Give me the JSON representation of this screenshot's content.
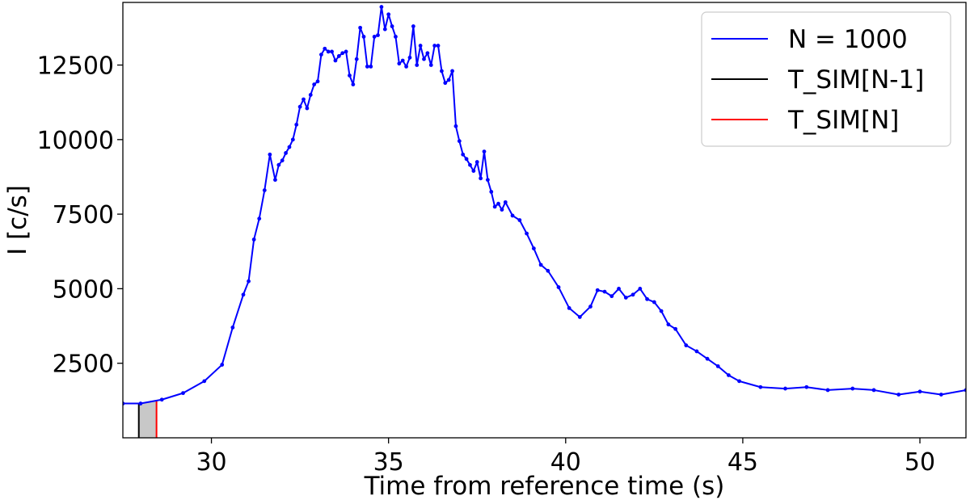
{
  "chart_data": {
    "type": "line",
    "xlabel": "Time from reference time (s)",
    "ylabel": "I [c/s]",
    "xlim": [
      27.5,
      51.3
    ],
    "ylim": [
      0,
      14600
    ],
    "x_ticks": [
      "30",
      "35",
      "40",
      "45",
      "50"
    ],
    "y_ticks": [
      "2500",
      "5000",
      "7500",
      "10000",
      "12500"
    ],
    "grid": false,
    "legend_position": "top-right",
    "legend": [
      {
        "label": "N = 1000",
        "color": "#0000ff"
      },
      {
        "label": "T_SIM[N-1]",
        "color": "#000000"
      },
      {
        "label": "T_SIM[N]",
        "color": "#ff0000"
      }
    ],
    "markers": [
      {
        "label": "T_SIM[N-1]",
        "x": 27.95,
        "color": "#000000"
      },
      {
        "label": "T_SIM[N]",
        "x": 28.45,
        "color": "#ff0000"
      }
    ],
    "shaded_interval": {
      "x0": 27.95,
      "x1": 28.45,
      "color": "#c8c8c8"
    },
    "series": [
      {
        "name": "N = 1000",
        "color": "#0000ff",
        "x": [
          27.5,
          28.0,
          28.6,
          29.2,
          29.8,
          30.3,
          30.6,
          30.9,
          31.05,
          31.2,
          31.35,
          31.5,
          31.65,
          31.8,
          31.9,
          32.0,
          32.1,
          32.2,
          32.3,
          32.4,
          32.5,
          32.6,
          32.7,
          32.8,
          32.9,
          33.0,
          33.1,
          33.2,
          33.3,
          33.4,
          33.5,
          33.6,
          33.7,
          33.8,
          33.9,
          34.0,
          34.1,
          34.2,
          34.3,
          34.4,
          34.5,
          34.6,
          34.7,
          34.8,
          34.9,
          35.0,
          35.1,
          35.2,
          35.3,
          35.4,
          35.5,
          35.6,
          35.7,
          35.8,
          35.9,
          36.0,
          36.1,
          36.2,
          36.3,
          36.4,
          36.5,
          36.6,
          36.7,
          36.8,
          36.9,
          37.0,
          37.1,
          37.2,
          37.3,
          37.4,
          37.5,
          37.6,
          37.7,
          37.8,
          37.9,
          38.0,
          38.1,
          38.2,
          38.3,
          38.5,
          38.7,
          38.9,
          39.1,
          39.3,
          39.5,
          39.8,
          40.1,
          40.4,
          40.7,
          40.9,
          41.1,
          41.3,
          41.5,
          41.7,
          41.9,
          42.1,
          42.3,
          42.5,
          42.7,
          42.9,
          43.1,
          43.4,
          43.7,
          44.0,
          44.3,
          44.6,
          44.9,
          45.5,
          46.2,
          46.8,
          47.4,
          48.1,
          48.7,
          49.4,
          50.0,
          50.6,
          51.3
        ],
        "y": [
          1150,
          1150,
          1280,
          1500,
          1900,
          2450,
          3700,
          4800,
          5250,
          6650,
          7350,
          8300,
          9500,
          8650,
          9150,
          9300,
          9550,
          9750,
          10000,
          10500,
          11100,
          11350,
          11050,
          11500,
          11850,
          11950,
          12850,
          13050,
          12950,
          12950,
          12650,
          12800,
          12900,
          12950,
          12150,
          11850,
          12700,
          13750,
          13450,
          12450,
          12450,
          13450,
          13500,
          14450,
          13700,
          14200,
          13800,
          13450,
          12550,
          12650,
          12450,
          12750,
          13800,
          12500,
          13150,
          12700,
          12900,
          12500,
          13150,
          13150,
          12300,
          11900,
          12000,
          12300,
          10450,
          9950,
          9500,
          9350,
          9150,
          8950,
          9250,
          8700,
          9600,
          8650,
          8250,
          7750,
          7850,
          7650,
          7900,
          7450,
          7300,
          6850,
          6350,
          5800,
          5600,
          5050,
          4350,
          4050,
          4400,
          4950,
          4900,
          4750,
          5000,
          4700,
          4800,
          5000,
          4650,
          4550,
          4250,
          3800,
          3650,
          3100,
          2900,
          2650,
          2400,
          2100,
          1900,
          1700,
          1650,
          1700,
          1600,
          1650,
          1600,
          1450,
          1550,
          1450,
          1600
        ]
      }
    ]
  }
}
